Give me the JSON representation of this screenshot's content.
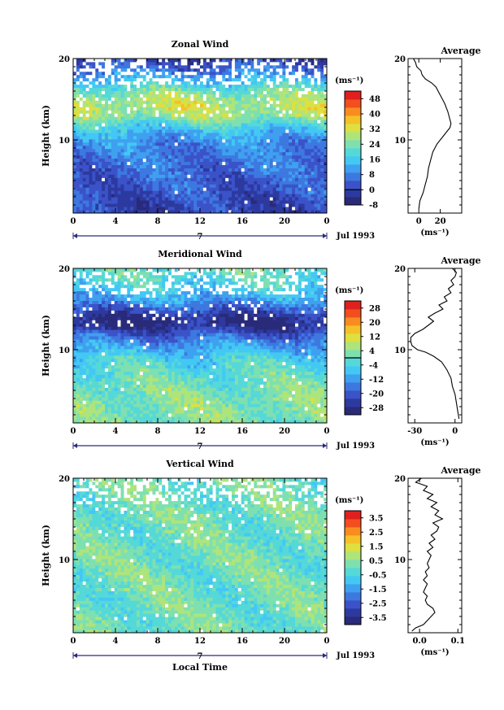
{
  "chart_data": [
    {
      "type": "heatmap",
      "title": "Zonal Wind",
      "xlabel": "",
      "ylabel": "Height (km)",
      "xlim": [
        0,
        24
      ],
      "ylim": [
        1,
        20
      ],
      "x_ticks": [
        "0",
        "4",
        "8",
        "12",
        "16",
        "20",
        "0"
      ],
      "y_ticks": [
        "10",
        "20"
      ],
      "date_marker": "7",
      "date_label": "Jul 1993",
      "colorbar": {
        "unit": "(ms⁻¹)",
        "levels": [
          "48",
          "40",
          "32",
          "24",
          "16",
          "8",
          "0",
          "-8"
        ],
        "min": -8,
        "max": 52,
        "zero_line": 0
      },
      "profile_means": [
        [
          1,
          0
        ],
        [
          2,
          1
        ],
        [
          3,
          2
        ],
        [
          4,
          3
        ],
        [
          5,
          4
        ],
        [
          6,
          5
        ],
        [
          7,
          6
        ],
        [
          8,
          7
        ],
        [
          9,
          8
        ],
        [
          10,
          10
        ],
        [
          11,
          14
        ],
        [
          12,
          20
        ],
        [
          13,
          27
        ],
        [
          14,
          30
        ],
        [
          15,
          28
        ],
        [
          16,
          24
        ],
        [
          17,
          17
        ],
        [
          18,
          10
        ],
        [
          19,
          4
        ],
        [
          20,
          0
        ]
      ],
      "average": {
        "title": "Average",
        "xlabel": "(ms⁻¹)",
        "x_ticks": [
          "0",
          "20"
        ],
        "xlim": [
          -10,
          40
        ],
        "y_ticks": [
          "10",
          "20"
        ],
        "ylim": [
          1,
          20
        ],
        "points": [
          [
            0,
            1.5
          ],
          [
            1,
            2.5
          ],
          [
            4,
            3.5
          ],
          [
            6,
            4.5
          ],
          [
            8,
            5.5
          ],
          [
            9,
            6.5
          ],
          [
            11,
            7.5
          ],
          [
            13,
            8.5
          ],
          [
            17,
            9.5
          ],
          [
            23,
            10.5
          ],
          [
            26,
            11
          ],
          [
            29,
            11.5
          ],
          [
            30,
            12
          ],
          [
            29,
            12.5
          ],
          [
            27,
            13.5
          ],
          [
            24,
            14.5
          ],
          [
            20,
            15.5
          ],
          [
            16,
            16.5
          ],
          [
            12,
            17
          ],
          [
            6,
            17.5
          ],
          [
            3,
            18
          ],
          [
            2,
            18.5
          ],
          [
            -2,
            19
          ],
          [
            -3,
            19.5
          ],
          [
            -5,
            20
          ]
        ]
      }
    },
    {
      "type": "heatmap",
      "title": "Meridional Wind",
      "xlabel": "",
      "ylabel": "Height (km)",
      "xlim": [
        0,
        24
      ],
      "ylim": [
        1,
        20
      ],
      "x_ticks": [
        "0",
        "4",
        "8",
        "12",
        "16",
        "20",
        "0"
      ],
      "y_ticks": [
        "10",
        "20"
      ],
      "date_marker": "7",
      "date_label": "Jul 1993",
      "colorbar": {
        "unit": "(ms⁻¹)",
        "levels": [
          "28",
          "20",
          "12",
          "4",
          "-4",
          "-12",
          "-20",
          "-28"
        ],
        "min": -32,
        "max": 32,
        "zero_line": 0
      },
      "profile_means": [
        [
          1,
          2
        ],
        [
          2,
          3
        ],
        [
          3,
          3
        ],
        [
          4,
          3
        ],
        [
          5,
          2
        ],
        [
          6,
          1
        ],
        [
          7,
          -1
        ],
        [
          8,
          -3
        ],
        [
          9,
          -5
        ],
        [
          10,
          -9
        ],
        [
          11,
          -14
        ],
        [
          12,
          -20
        ],
        [
          13,
          -28
        ],
        [
          14,
          -27
        ],
        [
          15,
          -20
        ],
        [
          16,
          -12
        ],
        [
          17,
          -8
        ],
        [
          18,
          -4
        ],
        [
          19,
          -2
        ],
        [
          20,
          0
        ]
      ],
      "average": {
        "title": "Average",
        "xlabel": "(ms⁻¹)",
        "x_ticks": [
          "-30",
          "0"
        ],
        "xlim": [
          -35,
          5
        ],
        "y_ticks": [
          "10",
          "20"
        ],
        "ylim": [
          1,
          20
        ],
        "points": [
          [
            3,
            1.5
          ],
          [
            2,
            2.5
          ],
          [
            1,
            3.5
          ],
          [
            0,
            4.5
          ],
          [
            -2,
            5.5
          ],
          [
            -3,
            6.5
          ],
          [
            -6,
            7.5
          ],
          [
            -10,
            8.5
          ],
          [
            -16,
            9.2
          ],
          [
            -22,
            9.7
          ],
          [
            -28,
            10
          ],
          [
            -32,
            10.5
          ],
          [
            -33,
            11
          ],
          [
            -33,
            11.5
          ],
          [
            -30,
            12
          ],
          [
            -24,
            12.5
          ],
          [
            -20,
            13
          ],
          [
            -16,
            13.5
          ],
          [
            -20,
            14
          ],
          [
            -15,
            14.5
          ],
          [
            -9,
            15
          ],
          [
            -12,
            15.5
          ],
          [
            -6,
            16
          ],
          [
            -8,
            16.5
          ],
          [
            -3,
            17
          ],
          [
            -5,
            17.5
          ],
          [
            -1,
            18
          ],
          [
            -3,
            18.5
          ],
          [
            0,
            19
          ],
          [
            1,
            19.5
          ],
          [
            -2,
            20
          ]
        ]
      }
    },
    {
      "type": "heatmap",
      "title": "Vertical Wind",
      "xlabel": "Local Time",
      "ylabel": "Height (km)",
      "xlim": [
        0,
        24
      ],
      "ylim": [
        1,
        20
      ],
      "x_ticks": [
        "0",
        "4",
        "8",
        "12",
        "16",
        "20",
        "0"
      ],
      "y_ticks": [
        "10",
        "20"
      ],
      "date_marker": "7",
      "date_label": "Jul 1993",
      "colorbar": {
        "unit": "(ms⁻¹)",
        "levels": [
          "3.5",
          "2.5",
          "1.5",
          "0.5",
          "-0.5",
          "-1.5",
          "-2.5",
          "-3.5"
        ],
        "min": -4,
        "max": 4,
        "zero_line": null
      },
      "profile_means": [
        [
          1,
          0.1
        ],
        [
          20,
          0.1
        ]
      ],
      "average": {
        "title": "Average",
        "xlabel": "(ms⁻¹)",
        "x_ticks": [
          "0.0",
          "0.1"
        ],
        "xlim": [
          -0.03,
          0.11
        ],
        "y_ticks": [
          "10",
          "20"
        ],
        "ylim": [
          1,
          20
        ],
        "points": [
          [
            -0.02,
            1.2
          ],
          [
            -0.01,
            1.6
          ],
          [
            0.01,
            2
          ],
          [
            0.02,
            2.5
          ],
          [
            0.03,
            3
          ],
          [
            0.04,
            3.5
          ],
          [
            0.035,
            4
          ],
          [
            0.02,
            4.5
          ],
          [
            0.015,
            5
          ],
          [
            0.02,
            5.5
          ],
          [
            0.01,
            6
          ],
          [
            0.015,
            6.5
          ],
          [
            0.02,
            7
          ],
          [
            0.01,
            7.5
          ],
          [
            0.02,
            8
          ],
          [
            0.015,
            8.5
          ],
          [
            0.025,
            9
          ],
          [
            0.02,
            9.5
          ],
          [
            0.025,
            10
          ],
          [
            0.03,
            10.5
          ],
          [
            0.02,
            11
          ],
          [
            0.035,
            11.5
          ],
          [
            0.025,
            12
          ],
          [
            0.04,
            12.5
          ],
          [
            0.03,
            13
          ],
          [
            0.045,
            13.5
          ],
          [
            0.05,
            14
          ],
          [
            0.035,
            14.5
          ],
          [
            0.06,
            15
          ],
          [
            0.04,
            15.5
          ],
          [
            0.05,
            16
          ],
          [
            0.03,
            16.5
          ],
          [
            0.045,
            17
          ],
          [
            0.02,
            17.5
          ],
          [
            0.035,
            18
          ],
          [
            0.01,
            18.5
          ],
          [
            0.02,
            19
          ],
          [
            -0.01,
            19.5
          ],
          [
            0.005,
            20
          ]
        ]
      }
    }
  ],
  "colors": {
    "palette": [
      "#2a2a7a",
      "#2c3aa0",
      "#3b52c8",
      "#3d78e0",
      "#3fa0f0",
      "#43c8f4",
      "#55d8d8",
      "#7ee0b0",
      "#aee47c",
      "#dde040",
      "#f5c028",
      "#f88c20",
      "#f24e1e",
      "#e0201c"
    ],
    "gap": "#ffffff",
    "axis": "#000000",
    "date_axis": "#2a2a7a"
  }
}
